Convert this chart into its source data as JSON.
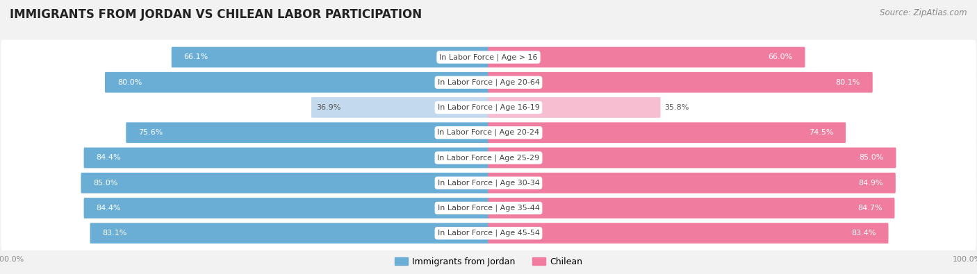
{
  "title": "IMMIGRANTS FROM JORDAN VS CHILEAN LABOR PARTICIPATION",
  "source": "Source: ZipAtlas.com",
  "categories": [
    "In Labor Force | Age > 16",
    "In Labor Force | Age 20-64",
    "In Labor Force | Age 16-19",
    "In Labor Force | Age 20-24",
    "In Labor Force | Age 25-29",
    "In Labor Force | Age 30-34",
    "In Labor Force | Age 35-44",
    "In Labor Force | Age 45-54"
  ],
  "jordan_values": [
    66.1,
    80.0,
    36.9,
    75.6,
    84.4,
    85.0,
    84.4,
    83.1
  ],
  "chilean_values": [
    66.0,
    80.1,
    35.8,
    74.5,
    85.0,
    84.9,
    84.7,
    83.4
  ],
  "jordan_color": "#6aaed6",
  "jordan_color_light": "#c2d9ee",
  "chilean_color": "#f07ca0",
  "chilean_color_light": "#f7bdd1",
  "bar_height": 0.62,
  "background_color": "#f2f2f2",
  "row_bg_color": "#e8e8e8",
  "max_value": 100.0,
  "legend_jordan": "Immigrants from Jordan",
  "legend_chilean": "Chilean",
  "title_fontsize": 12,
  "source_fontsize": 8.5,
  "label_fontsize": 8,
  "value_fontsize": 8,
  "axis_label_fontsize": 8
}
